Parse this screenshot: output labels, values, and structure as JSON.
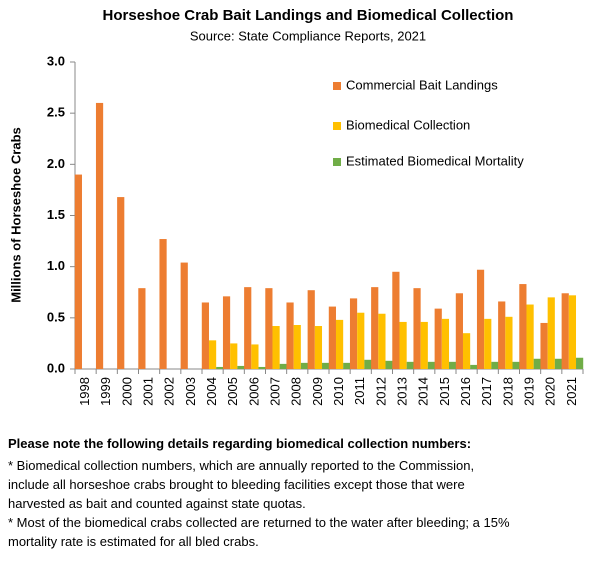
{
  "chart_data": {
    "type": "bar",
    "title": "Horseshoe Crab Bait Landings and Biomedical Collection",
    "subtitle": "Source: State Compliance Reports, 2021",
    "y_label": "Millions of Horseshoe Crabs",
    "categories": [
      "1998",
      "1999",
      "2000",
      "2001",
      "2002",
      "2003",
      "2004",
      "2005",
      "2006",
      "2007",
      "2008",
      "2009",
      "2010",
      "2011",
      "2012",
      "2013",
      "2014",
      "2015",
      "2016",
      "2017",
      "2018",
      "2019",
      "2020",
      "2021"
    ],
    "series": [
      {
        "name": "Commercial Bait Landings",
        "color": "#ed7d31",
        "values": [
          1.9,
          2.6,
          1.68,
          0.79,
          1.27,
          1.04,
          0.65,
          0.71,
          0.8,
          0.79,
          0.65,
          0.77,
          0.61,
          0.69,
          0.8,
          0.95,
          0.79,
          0.59,
          0.74,
          0.97,
          0.66,
          0.83,
          0.45,
          0.74
        ]
      },
      {
        "name": "Biomedical Collection",
        "color": "#ffc000",
        "values": [
          null,
          null,
          null,
          null,
          null,
          null,
          0.28,
          0.25,
          0.24,
          0.42,
          0.43,
          0.42,
          0.48,
          0.55,
          0.54,
          0.46,
          0.46,
          0.49,
          0.35,
          0.49,
          0.51,
          0.63,
          0.7,
          0.72
        ]
      },
      {
        "name": "Estimated Biomedical Mortality",
        "color": "#70ad47",
        "values": [
          null,
          null,
          null,
          null,
          null,
          null,
          0.02,
          0.03,
          0.02,
          0.05,
          0.06,
          0.06,
          0.06,
          0.09,
          0.08,
          0.07,
          0.07,
          0.07,
          0.04,
          0.07,
          0.07,
          0.1,
          0.1,
          0.11
        ]
      }
    ],
    "ylim": [
      0,
      3
    ],
    "yticks": [
      {
        "value": 0,
        "label": "0.0"
      },
      {
        "value": 0.5,
        "label": "0.5"
      },
      {
        "value": 1,
        "label": "1.0"
      },
      {
        "value": 1.5,
        "label": "1.5"
      },
      {
        "value": 2,
        "label": "2.0"
      },
      {
        "value": 2.5,
        "label": "2.5"
      },
      {
        "value": 3,
        "label": "3.0"
      }
    ],
    "grid": false,
    "legend_position": "upper-right"
  },
  "notes": {
    "heading": "Please note the following details regarding biomedical collection numbers:",
    "lines": [
      "* Biomedical collection numbers, which are annually reported to the Commission,",
      "include all horseshoe crabs brought to bleeding facilities except those that were",
      "harvested as bait and counted against state quotas.",
      "* Most of the biomedical crabs collected are returned to the water after bleeding; a 15%",
      "mortality rate is estimated for all bled crabs."
    ]
  }
}
